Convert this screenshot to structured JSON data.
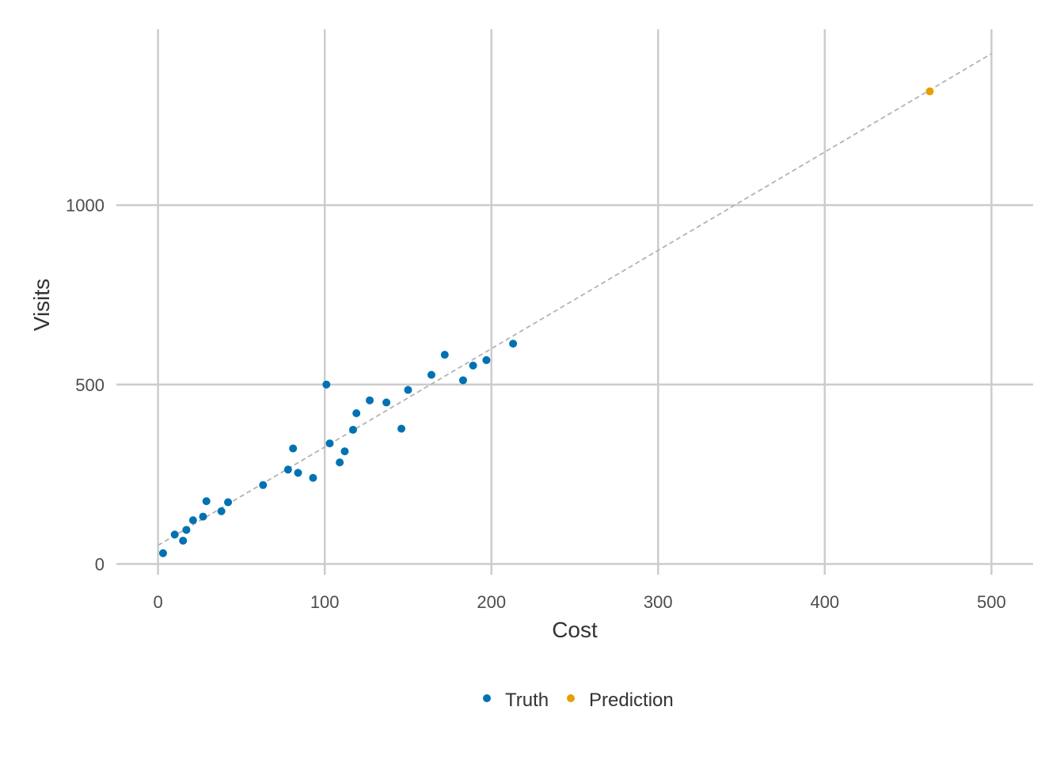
{
  "chart_data": {
    "type": "scatter",
    "title": "",
    "xlabel": "Cost",
    "ylabel": "Visits",
    "xlim": [
      -25,
      525
    ],
    "ylim": [
      -30,
      1490
    ],
    "xticks": [
      0,
      100,
      200,
      300,
      400,
      500
    ],
    "yticks": [
      0,
      500,
      1000
    ],
    "grid": true,
    "legend_position": "bottom",
    "colors": {
      "truth": "#0072B2",
      "prediction": "#E69F00",
      "fit_line": "#b3b3b3"
    },
    "series": [
      {
        "name": "Truth",
        "points": [
          [
            3,
            30
          ],
          [
            10,
            82
          ],
          [
            15,
            65
          ],
          [
            17,
            95
          ],
          [
            21,
            122
          ],
          [
            27,
            132
          ],
          [
            29,
            175
          ],
          [
            38,
            147
          ],
          [
            42,
            172
          ],
          [
            63,
            220
          ],
          [
            78,
            263
          ],
          [
            81,
            322
          ],
          [
            84,
            254
          ],
          [
            93,
            240
          ],
          [
            101,
            500
          ],
          [
            103,
            336
          ],
          [
            109,
            283
          ],
          [
            112,
            314
          ],
          [
            117,
            374
          ],
          [
            119,
            420
          ],
          [
            127,
            456
          ],
          [
            137,
            450
          ],
          [
            146,
            377
          ],
          [
            150,
            485
          ],
          [
            164,
            527
          ],
          [
            172,
            583
          ],
          [
            183,
            512
          ],
          [
            189,
            553
          ],
          [
            197,
            568
          ],
          [
            213,
            614
          ]
        ]
      },
      {
        "name": "Prediction",
        "points": [
          [
            463,
            1317
          ]
        ]
      }
    ],
    "fit_line": {
      "style": "dashed",
      "points": [
        [
          0,
          52
        ],
        [
          500,
          1422
        ]
      ]
    }
  }
}
